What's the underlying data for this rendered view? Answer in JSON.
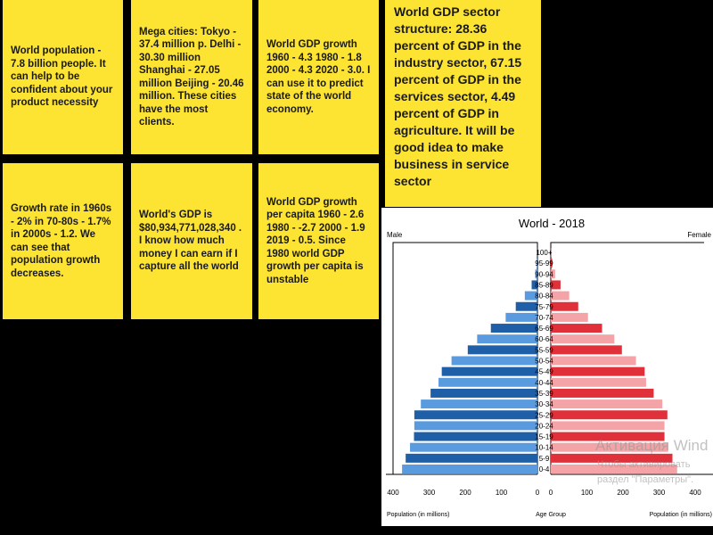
{
  "notes": [
    "World population - 7.8 billion people. It can help to be confident about your product necessity",
    "Mega cities: Tokyo - 37.4 million p. Delhi - 30.30 million Shanghai - 27.05 million Beijing - 20.46 million. These cities have the most clients.",
    "World GDP growth 1960 - 4.3 1980 - 1.8 2000 - 4.3 2020 - 3.0. I can use it to predict state of the world economy.",
    "World GDP sector structure: 28.36 percent of GDP in the industry sector, 67.15 percent of GDP in the services sector, 4.49 percent of GDP in agriculture. It will be good idea to make business in service sector",
    "Growth rate in 1960s - 2% in 70-80s - 1.7% in 2000s - 1.2. We can see that population growth decreases.",
    "World's GDP is $80,934,771,028,340 . I know how much money I can earn if I capture all the world",
    "World GDP growth per capita 1960 - 2.6 1980 - -2.7 2000 - 1.9 2019 - 0.5. Since 1980 world GDP growth per capita is unstable"
  ],
  "colors": {
    "note": "#fde433",
    "male_dark": "#1f5fa8",
    "male_light": "#5a9be0",
    "female_dark": "#e0313a",
    "female_light": "#f4a3a6"
  },
  "watermark": {
    "line1": "Активация Wind",
    "line2": "Чтобы активировать",
    "line3": "раздел \"Параметры\"."
  },
  "chart_data": {
    "type": "bar",
    "subtype": "population-pyramid",
    "title": "World - 2018",
    "left_label": "Male",
    "right_label": "Female",
    "xlabel_left": "Population (in millions)",
    "xlabel_right": "Population (in millions)",
    "center_label": "Age Group",
    "xlim": [
      0,
      400
    ],
    "xticks": [
      "400",
      "300",
      "200",
      "100",
      "0"
    ],
    "xticks_right": [
      "0",
      "100",
      "200",
      "300",
      "400"
    ],
    "categories": [
      "0-4",
      "5-9",
      "10-14",
      "15-19",
      "20-24",
      "25-29",
      "30-34",
      "35-39",
      "40-44",
      "45-49",
      "50-54",
      "55-59",
      "60-64",
      "65-69",
      "70-74",
      "75-79",
      "80-84",
      "85-89",
      "90-94",
      "95-99",
      "100+"
    ],
    "series": [
      {
        "name": "Male",
        "values": [
          375,
          365,
          353,
          342,
          341,
          341,
          323,
          296,
          274,
          265,
          238,
          193,
          167,
          129,
          88,
          60,
          35,
          16,
          6,
          1.5,
          0.2
        ]
      },
      {
        "name": "Female",
        "values": [
          350,
          337,
          325,
          315,
          315,
          323,
          309,
          285,
          264,
          260,
          236,
          197,
          176,
          142,
          103,
          76,
          51,
          27,
          12,
          4,
          0.5
        ]
      }
    ]
  }
}
